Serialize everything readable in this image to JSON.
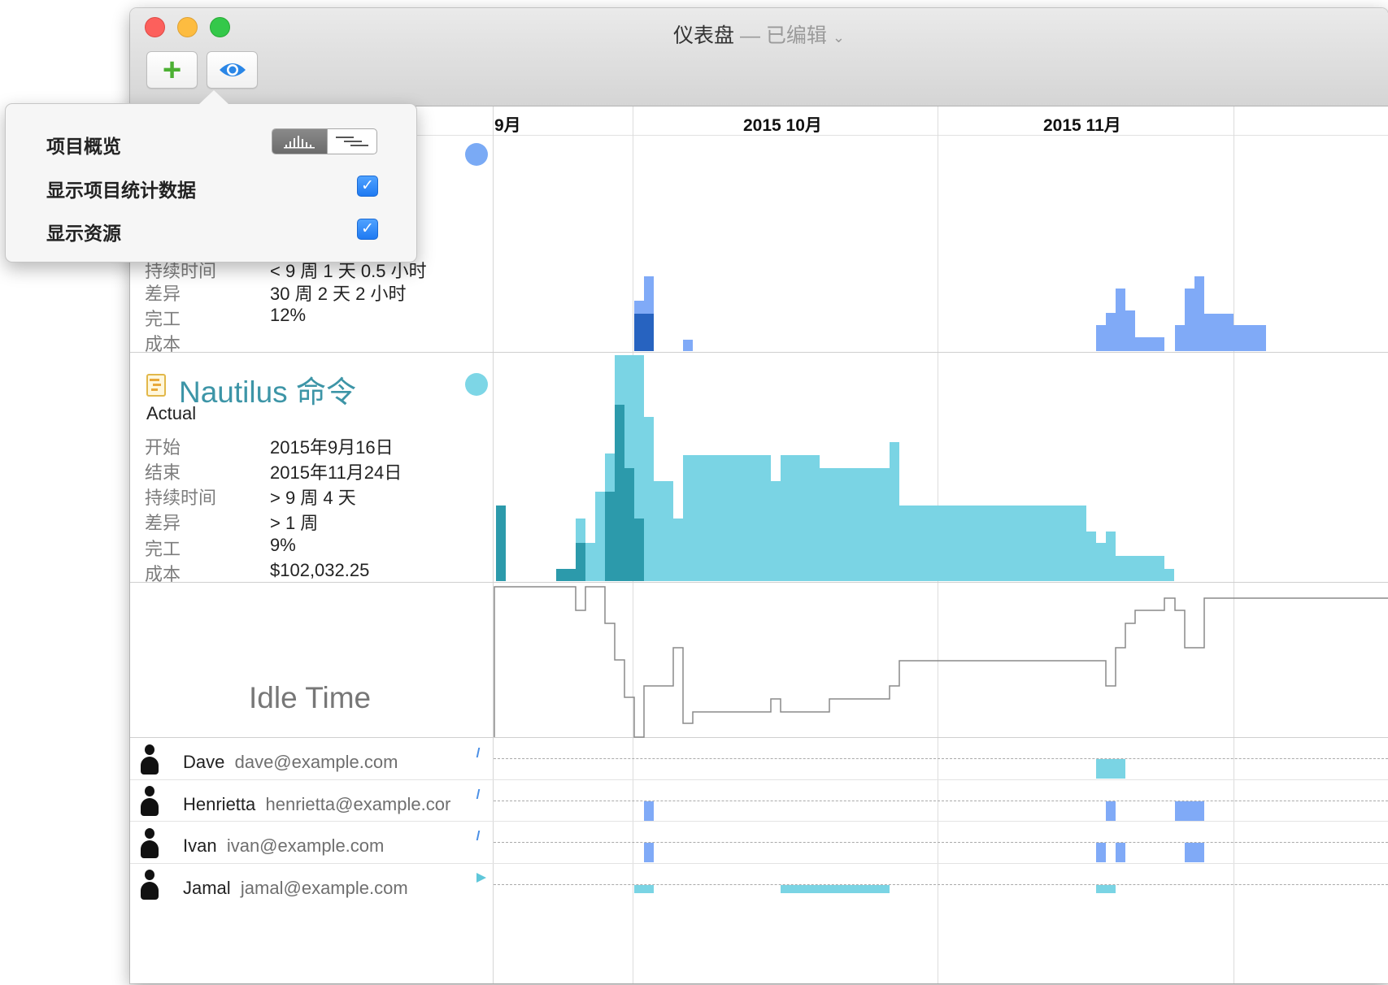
{
  "window": {
    "title": "仪表盘",
    "title_separator": "—",
    "title_status": "已编辑",
    "title_chevron": "⌄"
  },
  "toolbar": {
    "add_label": "+",
    "add_icon": "plus-icon",
    "view_icon": "eye-icon"
  },
  "timeline": {
    "header_partial": "项目",
    "months": [
      "9月",
      "2015 10月",
      "2015 11月"
    ]
  },
  "popover": {
    "items": [
      {
        "label": "项目概览",
        "control": "segmented",
        "selected": "histogram"
      },
      {
        "label": "显示项目统计数据",
        "control": "checkbox",
        "checked": true,
        "check_glyph": "✓"
      },
      {
        "label": "显示资源",
        "control": "checkbox",
        "checked": true,
        "check_glyph": "✓"
      }
    ]
  },
  "projects": [
    {
      "dot_color": "#7aaaf5",
      "stats": [
        {
          "label": "持续时间",
          "value": "< 9 周 1 天 0.5 小时"
        },
        {
          "label": "差异",
          "value": "30 周 2 天 2 小时"
        },
        {
          "label": "完工",
          "value": "12%"
        },
        {
          "label": "成本",
          "value": ""
        }
      ]
    },
    {
      "name": "Nautilus 命令",
      "subtitle": "Actual",
      "icon": "gantt-document-icon",
      "dot_color": "#7dd6e6",
      "stats": [
        {
          "label": "开始",
          "value": "2015年9月16日"
        },
        {
          "label": "结束",
          "value": "2015年11月24日"
        },
        {
          "label": "持续时间",
          "value": "> 9 周 4 天"
        },
        {
          "label": "差异",
          "value": "> 1 周"
        },
        {
          "label": "完工",
          "value": "9%"
        },
        {
          "label": "成本",
          "value": "$102,032.25"
        }
      ]
    }
  ],
  "idle_time": {
    "label": "Idle Time"
  },
  "resources": [
    {
      "name": "Dave",
      "email": "dave@example.com"
    },
    {
      "name": "Henrietta",
      "email": "henrietta@example.cor"
    },
    {
      "name": "Ivan",
      "email": "ivan@example.com"
    },
    {
      "name": "Jamal",
      "email": "jamal@example.com"
    }
  ],
  "colors": {
    "project1_light": "#80aaf7",
    "project1_dark": "#2763c0",
    "project2_light": "#7ad4e4",
    "project2_dark": "#2c9aab",
    "idle_line": "#8a8a8a"
  }
}
